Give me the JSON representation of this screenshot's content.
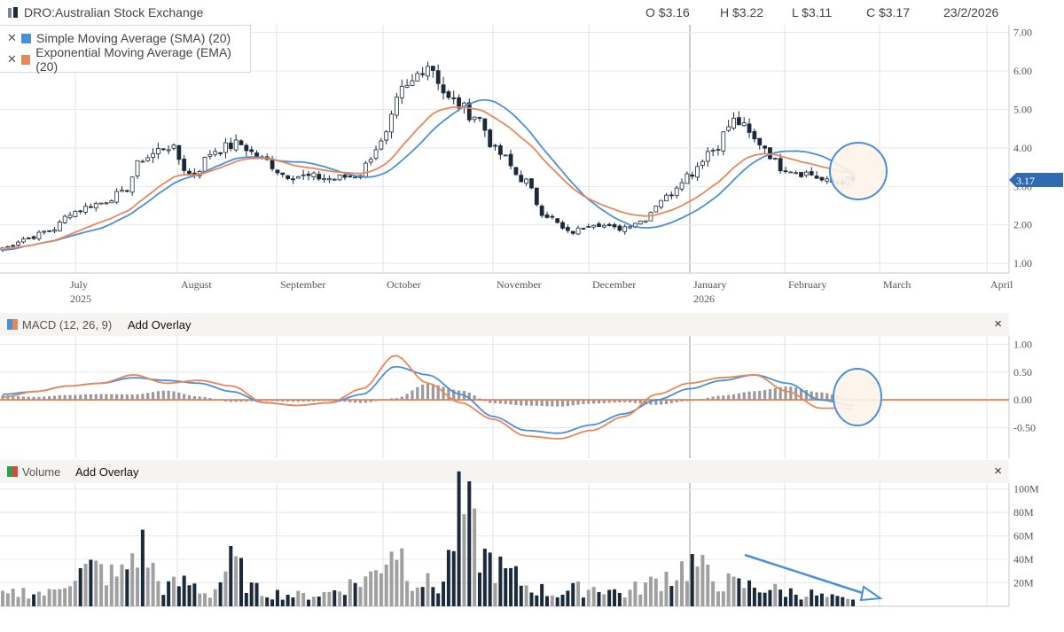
{
  "header": {
    "symbol": "DRO:Australian Stock Exchange",
    "open": "O $3.16",
    "high": "H $3.22",
    "low": "L $3.11",
    "close": "C $3.17",
    "date": "23/2/2026"
  },
  "legend": {
    "sma": {
      "label": "Simple Moving Average (SMA) (20)",
      "color": "#4a90d9"
    },
    "ema": {
      "label": "Exponential Moving Average (EMA) (20)",
      "color": "#e8875a"
    }
  },
  "price_tag": "3.17",
  "macd_bar": {
    "title": "MACD (12, 26, 9)",
    "overlay": "Add Overlay",
    "close": "×"
  },
  "volume_bar": {
    "title": "Volume",
    "overlay": "Add Overlay",
    "close": "×"
  },
  "colors": {
    "up": "#ffffff",
    "down": "#1b2a3a",
    "volume_up": "#a0a0a0",
    "volume_down": "#1b2a3a",
    "annotation": "#4a90d9",
    "macd": "#4a90d9",
    "signal": "#e8875a"
  },
  "chart_data": [
    {
      "type": "candlestick",
      "title": "DRO:Australian Stock Exchange",
      "x_ticks": [
        {
          "label": "July",
          "sub": "2025"
        },
        {
          "label": "August",
          "sub": ""
        },
        {
          "label": "September",
          "sub": ""
        },
        {
          "label": "October",
          "sub": ""
        },
        {
          "label": "November",
          "sub": ""
        },
        {
          "label": "December",
          "sub": ""
        },
        {
          "label": "January",
          "sub": "2026"
        },
        {
          "label": "February",
          "sub": ""
        },
        {
          "label": "March",
          "sub": ""
        },
        {
          "label": "April",
          "sub": ""
        }
      ],
      "y_ticks": [
        "7.00",
        "6.00",
        "5.00",
        "4.00",
        "3.00",
        "2.00",
        "1.00"
      ],
      "ylim": [
        0.75,
        7.2
      ],
      "close_anchors": [
        1.4,
        1.65,
        1.85,
        2.35,
        2.55,
        2.8,
        3.75,
        4.05,
        3.3,
        3.95,
        4.1,
        3.7,
        3.3,
        3.25,
        3.2,
        3.3,
        4.1,
        5.5,
        6.2,
        5.2,
        4.85,
        3.85,
        3.2,
        2.25,
        1.8,
        2.05,
        1.9,
        2.1,
        2.7,
        3.3,
        3.95,
        4.7,
        4.15,
        3.5,
        3.35,
        3.1,
        3.17
      ],
      "series": [
        {
          "name": "Simple Moving Average (SMA) (20)",
          "color": "#4a90d9"
        },
        {
          "name": "Exponential Moving Average (EMA) (20)",
          "color": "#e8875a"
        }
      ],
      "last_close": 3.17,
      "grid": true
    },
    {
      "type": "line",
      "title": "MACD (12, 26, 9)",
      "y_ticks": [
        "1.00",
        "0.50",
        "0.00",
        "-0.50"
      ],
      "ylim": [
        -1.05,
        1.15
      ],
      "macd_anchors": [
        0.1,
        0.15,
        0.25,
        0.3,
        0.4,
        0.35,
        0.3,
        0.15,
        -0.05,
        -0.1,
        -0.05,
        0.1,
        0.6,
        0.45,
        0.1,
        -0.3,
        -0.55,
        -0.6,
        -0.45,
        -0.25,
        0.0,
        0.2,
        0.35,
        0.45,
        0.3,
        0.0,
        -0.1
      ],
      "signal_anchors": [
        0.05,
        0.15,
        0.25,
        0.3,
        0.45,
        0.3,
        0.35,
        0.25,
        -0.05,
        -0.1,
        -0.05,
        0.2,
        0.8,
        0.3,
        -0.05,
        -0.35,
        -0.65,
        -0.7,
        -0.55,
        -0.3,
        0.1,
        0.3,
        0.4,
        0.45,
        0.15,
        -0.15,
        -0.15
      ],
      "grid": true
    },
    {
      "type": "bar",
      "title": "Volume",
      "y_ticks": [
        "100M",
        "80M",
        "60M",
        "40M",
        "20M"
      ],
      "ylim": [
        0,
        105
      ],
      "volume_anchors": [
        10,
        14,
        12,
        30,
        35,
        28,
        55,
        18,
        22,
        12,
        40,
        15,
        12,
        10,
        12,
        20,
        28,
        60,
        25,
        18,
        90,
        45,
        30,
        18,
        12,
        16,
        18,
        12,
        20,
        30,
        40,
        25,
        20,
        18,
        14,
        12,
        8,
        5
      ],
      "grid": true
    }
  ]
}
